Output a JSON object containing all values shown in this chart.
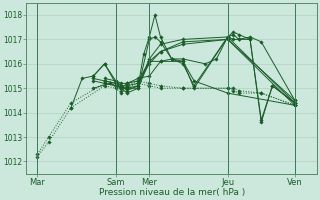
{
  "bg_color": "#cce8dc",
  "grid_color": "#aaccbb",
  "line_color": "#1a5c28",
  "ylim": [
    1011.5,
    1018.5
  ],
  "yticks": [
    1012,
    1013,
    1014,
    1015,
    1016,
    1017,
    1018
  ],
  "xlabel": "Pression niveau de la mer( hPa )",
  "day_labels": [
    "Mar",
    "Sam",
    "Mer",
    "Jeu",
    "Ven"
  ],
  "day_positions": [
    0,
    7,
    10,
    17,
    23
  ],
  "xlim": [
    -1,
    25
  ],
  "lines": [
    {
      "x": [
        0,
        1,
        3,
        6,
        7,
        7.5,
        8,
        9,
        10,
        11,
        13,
        17,
        17.5,
        18,
        20,
        23
      ],
      "y": [
        1012.2,
        1012.8,
        1014.2,
        1015.1,
        1015.0,
        1014.8,
        1015.0,
        1015.2,
        1015.1,
        1015.0,
        1015.0,
        1015.0,
        1014.9,
        1014.8,
        1014.8,
        1014.3
      ],
      "style": "dotted"
    },
    {
      "x": [
        0,
        1,
        3,
        6,
        7,
        7.5,
        8,
        9,
        10,
        11,
        13,
        17,
        17.5,
        18,
        20,
        23
      ],
      "y": [
        1012.3,
        1013.0,
        1014.4,
        1015.2,
        1015.1,
        1014.9,
        1015.1,
        1015.3,
        1015.2,
        1015.1,
        1015.0,
        1015.0,
        1015.0,
        1014.9,
        1014.8,
        1014.3
      ],
      "style": "dotted"
    },
    {
      "x": [
        5,
        6,
        7,
        7.5,
        8,
        9,
        10,
        11,
        13,
        17,
        23
      ],
      "y": [
        1015.4,
        1015.3,
        1015.2,
        1015.1,
        1015.1,
        1015.2,
        1016.0,
        1016.5,
        1016.8,
        1017.0,
        1014.3
      ],
      "style": "solid"
    },
    {
      "x": [
        5,
        6,
        7,
        7.5,
        8,
        9,
        10,
        11,
        13,
        17,
        23
      ],
      "y": [
        1015.3,
        1015.2,
        1015.1,
        1015.0,
        1015.0,
        1015.1,
        1016.2,
        1016.8,
        1017.0,
        1017.1,
        1014.4
      ],
      "style": "solid"
    },
    {
      "x": [
        5,
        6.5,
        7,
        8,
        9,
        10,
        11,
        13,
        17,
        23
      ],
      "y": [
        1015.0,
        1015.2,
        1015.1,
        1015.0,
        1015.0,
        1016.1,
        1016.5,
        1016.9,
        1017.0,
        1014.5
      ],
      "style": "solid"
    },
    {
      "x": [
        6,
        7,
        7.5,
        8,
        9,
        10,
        10.5,
        11,
        12,
        13,
        14,
        17,
        17.5,
        18,
        19,
        20,
        21,
        23
      ],
      "y": [
        1015.3,
        1015.2,
        1015.0,
        1014.8,
        1015.0,
        1017.0,
        1017.1,
        1016.9,
        1016.2,
        1016.1,
        1015.0,
        1017.1,
        1017.2,
        1017.0,
        1017.0,
        1013.6,
        1015.1,
        1014.4
      ],
      "style": "solid"
    },
    {
      "x": [
        6,
        7,
        7.5,
        8,
        9,
        9.5,
        10,
        10.5,
        11,
        12,
        13,
        14,
        17,
        17.5,
        18,
        19,
        20,
        21,
        23
      ],
      "y": [
        1015.4,
        1015.3,
        1015.1,
        1014.9,
        1015.1,
        1016.4,
        1017.1,
        1018.0,
        1017.1,
        1016.2,
        1016.0,
        1015.1,
        1017.1,
        1017.3,
        1017.2,
        1017.0,
        1013.7,
        1015.1,
        1014.4
      ],
      "style": "solid"
    },
    {
      "x": [
        5,
        6,
        7,
        7.5,
        8,
        9,
        10,
        11,
        12,
        13,
        15,
        16,
        17,
        17.5,
        18,
        19,
        20,
        23
      ],
      "y": [
        1015.5,
        1016.0,
        1015.2,
        1015.0,
        1015.2,
        1015.4,
        1015.5,
        1016.1,
        1016.2,
        1016.2,
        1016.0,
        1016.2,
        1017.1,
        1017.0,
        1017.0,
        1017.1,
        1016.9,
        1014.5
      ],
      "style": "solid"
    },
    {
      "x": [
        3,
        4,
        5,
        6,
        7,
        7.5,
        8,
        9,
        10,
        11,
        13,
        14,
        17,
        23
      ],
      "y": [
        1014.2,
        1015.4,
        1015.5,
        1016.0,
        1015.3,
        1015.2,
        1015.2,
        1015.3,
        1016.1,
        1016.1,
        1016.1,
        1015.3,
        1014.8,
        1014.3
      ],
      "style": "solid"
    }
  ]
}
